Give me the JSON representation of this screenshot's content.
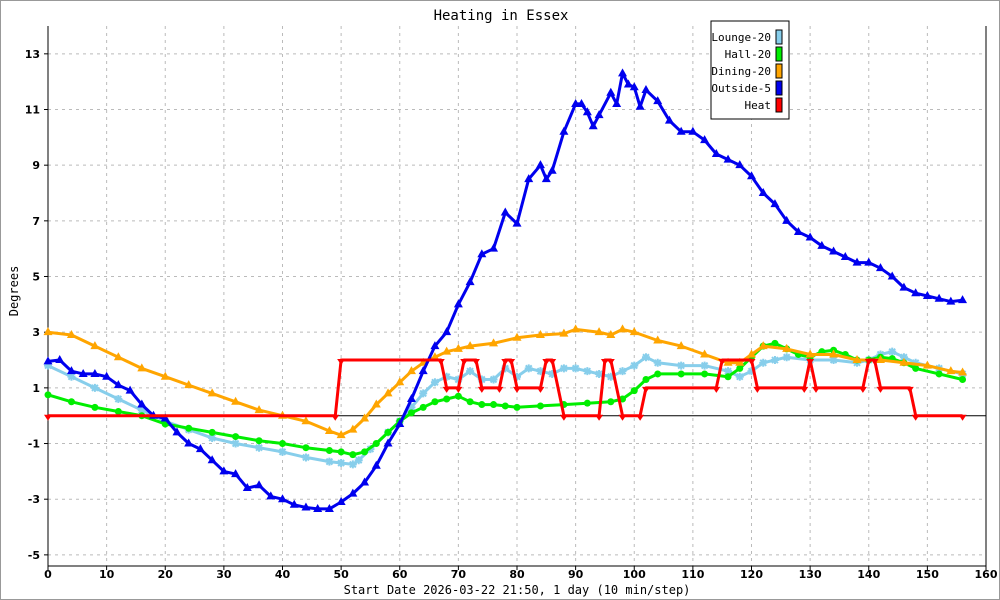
{
  "chart_data": {
    "type": "line",
    "title": "Heating in Essex",
    "xlabel": "Start Date 2026-03-22 21:50, 1 day (10 min/step)",
    "ylabel": "Degrees",
    "xlim": [
      0,
      160
    ],
    "ylim": [
      -5.4,
      14
    ],
    "xticks": [
      0,
      10,
      20,
      30,
      40,
      50,
      60,
      70,
      80,
      90,
      100,
      110,
      120,
      130,
      140,
      150,
      160
    ],
    "yticks": [
      -5,
      -3,
      -1,
      1,
      3,
      5,
      7,
      9,
      11,
      13
    ],
    "grid": true,
    "legend_position": "top-right",
    "series": [
      {
        "name": "Lounge-20",
        "color": "#87ceeb",
        "marker": "cross",
        "x": [
          0,
          4,
          8,
          12,
          16,
          20,
          24,
          28,
          32,
          36,
          40,
          44,
          48,
          50,
          52,
          53,
          55,
          58,
          60,
          62,
          64,
          66,
          68,
          70,
          72,
          74,
          76,
          78,
          80,
          82,
          84,
          86,
          88,
          90,
          92,
          94,
          96,
          98,
          100,
          102,
          104,
          108,
          112,
          116,
          118,
          120,
          122,
          124,
          126,
          130,
          134,
          138,
          140,
          142,
          144,
          146,
          148,
          152,
          156
        ],
        "y": [
          1.8,
          1.4,
          1.0,
          0.6,
          0.2,
          -0.2,
          -0.5,
          -0.8,
          -1.0,
          -1.15,
          -1.3,
          -1.5,
          -1.65,
          -1.7,
          -1.75,
          -1.6,
          -1.2,
          -0.6,
          -0.2,
          0.3,
          0.8,
          1.2,
          1.4,
          1.3,
          1.6,
          1.3,
          1.3,
          1.7,
          1.4,
          1.7,
          1.6,
          1.5,
          1.7,
          1.7,
          1.6,
          1.5,
          1.4,
          1.6,
          1.8,
          2.1,
          1.9,
          1.8,
          1.8,
          1.6,
          1.4,
          1.6,
          1.9,
          2.0,
          2.1,
          2.0,
          2.0,
          1.9,
          2.0,
          2.2,
          2.3,
          2.1,
          1.9,
          1.7,
          1.5
        ]
      },
      {
        "name": "Hall-20",
        "color": "#00ee00",
        "marker": "circle",
        "x": [
          0,
          4,
          8,
          12,
          16,
          20,
          24,
          28,
          32,
          36,
          40,
          44,
          48,
          50,
          52,
          54,
          56,
          58,
          60,
          62,
          64,
          66,
          68,
          70,
          72,
          74,
          76,
          78,
          80,
          84,
          88,
          92,
          96,
          98,
          100,
          102,
          104,
          108,
          112,
          116,
          118,
          120,
          122,
          124,
          126,
          128,
          130,
          132,
          134,
          136,
          138,
          140,
          142,
          144,
          146,
          148,
          152,
          156
        ],
        "y": [
          0.75,
          0.5,
          0.3,
          0.15,
          0.0,
          -0.3,
          -0.45,
          -0.6,
          -0.75,
          -0.9,
          -1.0,
          -1.15,
          -1.25,
          -1.3,
          -1.4,
          -1.3,
          -1.0,
          -0.6,
          -0.2,
          0.1,
          0.3,
          0.5,
          0.6,
          0.7,
          0.5,
          0.4,
          0.4,
          0.35,
          0.3,
          0.35,
          0.4,
          0.45,
          0.5,
          0.6,
          0.9,
          1.3,
          1.5,
          1.5,
          1.5,
          1.4,
          1.7,
          2.1,
          2.5,
          2.6,
          2.4,
          2.2,
          2.1,
          2.3,
          2.35,
          2.2,
          2.0,
          2.0,
          2.1,
          2.05,
          1.9,
          1.7,
          1.5,
          1.3
        ]
      },
      {
        "name": "Dining-20",
        "color": "#ffa500",
        "marker": "triangle-up",
        "x": [
          0,
          4,
          8,
          12,
          16,
          20,
          24,
          28,
          32,
          36,
          40,
          44,
          48,
          50,
          52,
          54,
          56,
          58,
          60,
          62,
          64,
          66,
          68,
          70,
          72,
          76,
          80,
          84,
          88,
          90,
          94,
          96,
          98,
          100,
          104,
          108,
          112,
          116,
          118,
          120,
          122,
          126,
          130,
          134,
          138,
          142,
          146,
          150,
          154,
          156
        ],
        "y": [
          3.0,
          2.9,
          2.5,
          2.1,
          1.7,
          1.4,
          1.1,
          0.8,
          0.5,
          0.2,
          0.0,
          -0.2,
          -0.55,
          -0.7,
          -0.5,
          -0.1,
          0.4,
          0.8,
          1.2,
          1.6,
          1.9,
          2.1,
          2.3,
          2.4,
          2.5,
          2.6,
          2.8,
          2.9,
          2.95,
          3.1,
          3.0,
          2.9,
          3.1,
          3.0,
          2.7,
          2.5,
          2.2,
          1.9,
          1.9,
          2.2,
          2.5,
          2.4,
          2.2,
          2.2,
          2.0,
          2.0,
          1.9,
          1.8,
          1.6,
          1.55
        ]
      },
      {
        "name": "Outside-5",
        "color": "#0000ee",
        "marker": "triangle-up",
        "x": [
          0,
          2,
          4,
          6,
          8,
          10,
          12,
          14,
          16,
          18,
          20,
          22,
          24,
          26,
          28,
          30,
          32,
          34,
          36,
          38,
          40,
          42,
          44,
          46,
          48,
          50,
          52,
          54,
          56,
          58,
          60,
          62,
          64,
          66,
          68,
          70,
          72,
          74,
          76,
          78,
          80,
          82,
          84,
          85,
          86,
          88,
          90,
          91,
          92,
          93,
          94,
          96,
          97,
          98,
          99,
          100,
          101,
          102,
          104,
          106,
          108,
          110,
          112,
          114,
          116,
          118,
          120,
          122,
          124,
          126,
          128,
          130,
          132,
          134,
          136,
          138,
          140,
          142,
          144,
          146,
          148,
          150,
          152,
          154,
          156
        ],
        "y": [
          1.95,
          2.0,
          1.6,
          1.5,
          1.5,
          1.4,
          1.1,
          0.9,
          0.4,
          0.0,
          -0.1,
          -0.6,
          -1.0,
          -1.2,
          -1.6,
          -2.0,
          -2.1,
          -2.6,
          -2.5,
          -2.9,
          -3.0,
          -3.2,
          -3.3,
          -3.35,
          -3.35,
          -3.1,
          -2.8,
          -2.4,
          -1.8,
          -1.0,
          -0.3,
          0.6,
          1.6,
          2.5,
          3.0,
          4.0,
          4.8,
          5.8,
          6.0,
          7.3,
          6.9,
          8.5,
          9.0,
          8.5,
          8.8,
          10.2,
          11.2,
          11.2,
          10.9,
          10.4,
          10.8,
          11.6,
          11.2,
          12.3,
          11.9,
          11.8,
          11.1,
          11.7,
          11.3,
          10.6,
          10.2,
          10.2,
          9.9,
          9.4,
          9.2,
          9.0,
          8.6,
          8.0,
          7.6,
          7.0,
          6.6,
          6.4,
          6.1,
          5.9,
          5.7,
          5.5,
          5.5,
          5.3,
          5.0,
          4.6,
          4.4,
          4.3,
          4.2,
          4.1,
          4.15
        ]
      },
      {
        "name": "Heat",
        "color": "#ff0000",
        "marker": "triangle-down",
        "x": [
          0,
          49,
          50,
          67,
          68,
          70,
          71,
          73,
          74,
          77,
          78,
          79,
          80,
          84,
          85,
          86,
          88,
          94,
          95,
          96,
          98,
          101,
          102,
          114,
          115,
          120,
          121,
          129,
          130,
          131,
          139,
          140,
          141,
          142,
          147,
          148,
          156
        ],
        "y": [
          0,
          0,
          2,
          2,
          1,
          1,
          2,
          2,
          1,
          1,
          2,
          2,
          1,
          1,
          2,
          2,
          0,
          0,
          2,
          2,
          0,
          0,
          1,
          1,
          2,
          2,
          1,
          1,
          2,
          1,
          1,
          2,
          2,
          1,
          1,
          0,
          0
        ]
      }
    ]
  }
}
